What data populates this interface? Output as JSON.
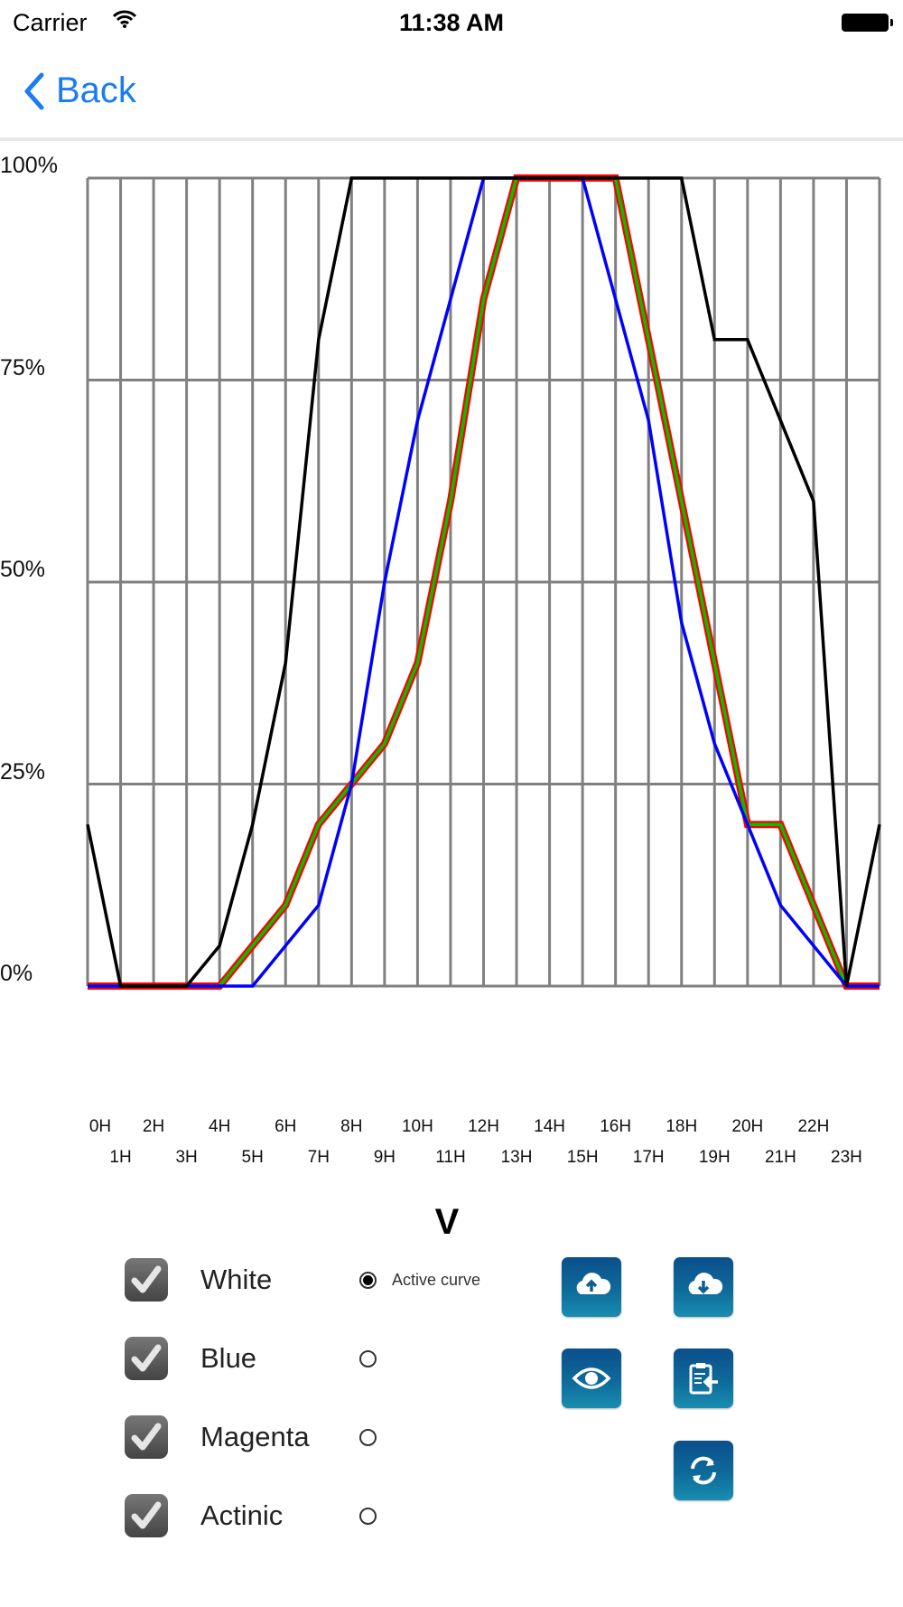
{
  "status_bar": {
    "carrier": "Carrier",
    "time": "11:38 AM"
  },
  "nav": {
    "back_label": "Back"
  },
  "chart_data": {
    "type": "line",
    "title": "",
    "xlabel": "",
    "ylabel": "",
    "x": [
      0,
      1,
      2,
      3,
      4,
      5,
      6,
      7,
      8,
      9,
      10,
      11,
      12,
      13,
      14,
      15,
      16,
      17,
      18,
      19,
      20,
      21,
      22,
      23,
      24
    ],
    "x_tick_labels": [
      "0H",
      "1H",
      "2H",
      "3H",
      "4H",
      "5H",
      "6H",
      "7H",
      "8H",
      "9H",
      "10H",
      "11H",
      "12H",
      "13H",
      "14H",
      "15H",
      "16H",
      "17H",
      "18H",
      "19H",
      "20H",
      "21H",
      "22H",
      "23H"
    ],
    "y_tick_labels": [
      "100%",
      "75%",
      "50%",
      "25%",
      "0%"
    ],
    "y_ticks": [
      100,
      75,
      50,
      25,
      0
    ],
    "ylim": [
      0,
      100
    ],
    "xlim": [
      0,
      24
    ],
    "grid": true,
    "series": [
      {
        "name": "Magenta",
        "color": "#ff0000",
        "values": [
          0,
          0,
          0,
          0,
          0,
          5,
          10,
          20,
          25,
          30,
          40,
          60,
          85,
          100,
          100,
          100,
          100,
          80,
          60,
          40,
          20,
          20,
          10,
          0,
          0
        ]
      },
      {
        "name": "Actinic",
        "color": "#00c000",
        "values": [
          0,
          0,
          0,
          0,
          0,
          5,
          10,
          20,
          25,
          30,
          40,
          60,
          85,
          100,
          100,
          100,
          100,
          80,
          60,
          40,
          20,
          20,
          10,
          0,
          0
        ]
      },
      {
        "name": "Blue",
        "color": "#0000ff",
        "values": [
          0,
          0,
          0,
          0,
          0,
          0,
          5,
          10,
          25,
          50,
          70,
          85,
          100,
          100,
          100,
          100,
          85,
          70,
          45,
          30,
          20,
          10,
          5,
          0,
          0
        ]
      },
      {
        "name": "White",
        "color": "#000000",
        "values": [
          20,
          0,
          0,
          0,
          5,
          20,
          40,
          80,
          100,
          100,
          100,
          100,
          100,
          100,
          100,
          100,
          100,
          100,
          100,
          80,
          80,
          70,
          60,
          0,
          20
        ]
      }
    ]
  },
  "panel": {
    "title": "V",
    "active_curve_label": "Active curve",
    "channels": [
      {
        "label": "White",
        "checked": true,
        "active": true
      },
      {
        "label": "Blue",
        "checked": true,
        "active": false
      },
      {
        "label": "Magenta",
        "checked": true,
        "active": false
      },
      {
        "label": "Actinic",
        "checked": true,
        "active": false
      }
    ],
    "buttons": [
      "cloud-upload-icon",
      "cloud-download-icon",
      "eye-icon",
      "clipboard-import-icon",
      "refresh-icon"
    ]
  }
}
